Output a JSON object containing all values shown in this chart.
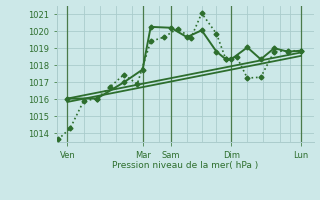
{
  "bg_color": "#cce8e8",
  "grid_color": "#aacccc",
  "line_color": "#2d6e2d",
  "xlabel": "Pression niveau de la mer( hPa )",
  "ylim": [
    1013.5,
    1021.5
  ],
  "xlim": [
    0,
    9.6
  ],
  "yticks": [
    1014,
    1015,
    1016,
    1017,
    1018,
    1019,
    1020,
    1021
  ],
  "xtick_labels": [
    "Ven",
    "Mar",
    "Sam",
    "Dim",
    "Lun"
  ],
  "xtick_pos": [
    0.4,
    3.2,
    4.25,
    6.5,
    9.1
  ],
  "vlines_dark": [
    0.4,
    3.2,
    4.25,
    6.5,
    9.1
  ],
  "vlines_light": [
    1.0,
    1.6,
    2.2,
    2.8,
    3.8,
    4.85,
    5.4,
    5.95,
    7.1,
    7.7,
    8.3,
    8.7
  ],
  "series": {
    "dotted": {
      "x": [
        0.05,
        0.5,
        1.0,
        1.5,
        2.0,
        2.5,
        3.0,
        3.5,
        4.0,
        4.5,
        5.0,
        5.4,
        5.95,
        6.3,
        6.7,
        7.1,
        7.6,
        8.1,
        8.6,
        9.1
      ],
      "y": [
        1013.65,
        1014.3,
        1015.9,
        1016.05,
        1016.75,
        1017.45,
        1016.9,
        1019.4,
        1019.65,
        1020.15,
        1019.6,
        1021.05,
        1019.85,
        1018.35,
        1018.5,
        1017.25,
        1017.3,
        1018.8,
        1018.85,
        1018.85
      ],
      "lw": 1.2,
      "ms": 2.5
    },
    "solid_markers": {
      "x": [
        0.4,
        1.5,
        2.5,
        3.2,
        3.5,
        4.25,
        4.85,
        5.4,
        5.95,
        6.3,
        6.5,
        7.1,
        7.6,
        8.1,
        8.6,
        9.1
      ],
      "y": [
        1016.05,
        1016.05,
        1017.0,
        1017.75,
        1020.25,
        1020.2,
        1019.65,
        1020.05,
        1018.8,
        1018.35,
        1018.35,
        1019.05,
        1018.35,
        1019.0,
        1018.8,
        1018.85
      ],
      "lw": 1.4,
      "ms": 2.5
    },
    "trend1": {
      "x": [
        0.4,
        9.1
      ],
      "y": [
        1015.85,
        1018.55
      ],
      "lw": 1.3
    },
    "trend2": {
      "x": [
        0.4,
        9.1
      ],
      "y": [
        1016.05,
        1018.75
      ],
      "lw": 1.3
    }
  }
}
